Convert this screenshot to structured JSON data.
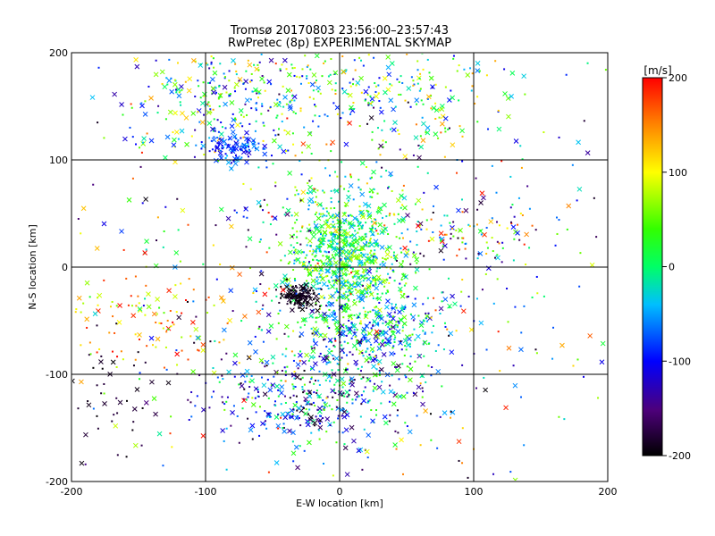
{
  "chart_data": {
    "type": "scatter",
    "title": "Tromsø 20170803 23:56:00–23:57:43",
    "subtitle": "RwPretec (8p) EXPERIMENTAL SKYMAP",
    "xlabel": "E-W location [km]",
    "ylabel": "N-S location [km]",
    "xlim": [
      -200,
      200
    ],
    "ylim": [
      -200,
      200
    ],
    "xticks": [
      "-200",
      "-100",
      "0",
      "100",
      "200"
    ],
    "yticks": [
      "-200",
      "-100",
      "0",
      "100",
      "200"
    ],
    "grid": true,
    "colorbar": {
      "label": "[m/s]",
      "range": [
        -200,
        200
      ],
      "ticks": [
        "-200",
        "-100",
        "0",
        "100",
        "200"
      ],
      "colormap": "rainbow",
      "placement": "right"
    },
    "markers": [
      "dot",
      "x"
    ],
    "clusters": [
      {
        "x": 5,
        "y": 5,
        "sx": 22,
        "sy": 38,
        "n": 900,
        "vmin": -60,
        "vmax": 90
      },
      {
        "x": -20,
        "y": -120,
        "sx": 40,
        "sy": 28,
        "n": 450,
        "vmin": -200,
        "vmax": 60
      },
      {
        "x": -85,
        "y": 160,
        "sx": 35,
        "sy": 30,
        "n": 260,
        "vmin": -150,
        "vmax": 140
      },
      {
        "x": -78,
        "y": 112,
        "sx": 12,
        "sy": 8,
        "n": 110,
        "vmin": -120,
        "vmax": -40
      },
      {
        "x": -30,
        "y": -27,
        "sx": 7,
        "sy": 6,
        "n": 140,
        "vmin": -200,
        "vmax": -180
      },
      {
        "x": 30,
        "y": -60,
        "sx": 25,
        "sy": 20,
        "n": 260,
        "vmin": -150,
        "vmax": 50
      },
      {
        "x": 30,
        "y": 160,
        "sx": 55,
        "sy": 28,
        "n": 250,
        "vmin": -110,
        "vmax": 140
      },
      {
        "x": 95,
        "y": 30,
        "sx": 30,
        "sy": 20,
        "n": 110,
        "vmin": -200,
        "vmax": 200
      },
      {
        "x": -150,
        "y": -50,
        "sx": 35,
        "sy": 25,
        "n": 100,
        "vmin": 50,
        "vmax": 200
      },
      {
        "x": -175,
        "y": -130,
        "sx": 20,
        "sy": 30,
        "n": 40,
        "vmin": -200,
        "vmax": -170
      },
      {
        "x": 0,
        "y": 0,
        "sx": 130,
        "sy": 120,
        "n": 650,
        "vmin": -200,
        "vmax": 200
      }
    ]
  }
}
